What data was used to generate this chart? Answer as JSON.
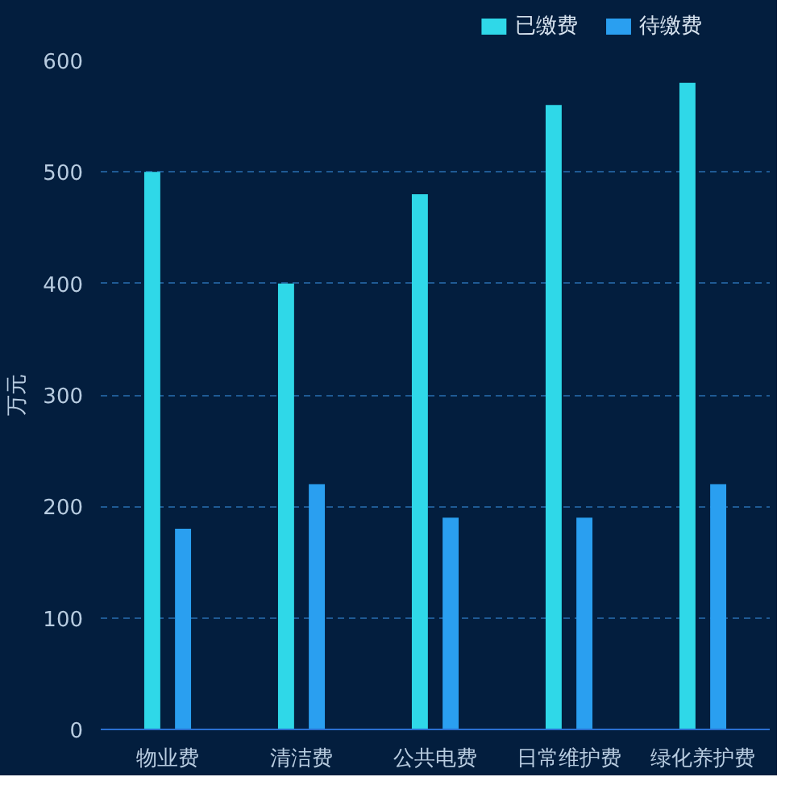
{
  "chart_data": {
    "type": "bar",
    "ylabel": "万元",
    "categories": [
      "物业费",
      "清洁费",
      "公共电费",
      "日常维护费",
      "绿化养护费"
    ],
    "series": [
      {
        "name": "已缴费",
        "color": "#2fd8e8",
        "values": [
          500,
          400,
          480,
          560,
          580
        ]
      },
      {
        "name": "待缴费",
        "color": "#2a9ff0",
        "values": [
          180,
          220,
          190,
          190,
          220
        ]
      }
    ],
    "ylim": [
      0,
      600
    ],
    "yticks": [
      0,
      100,
      200,
      300,
      400,
      500,
      600
    ],
    "grid": "y",
    "legend": "top right"
  }
}
